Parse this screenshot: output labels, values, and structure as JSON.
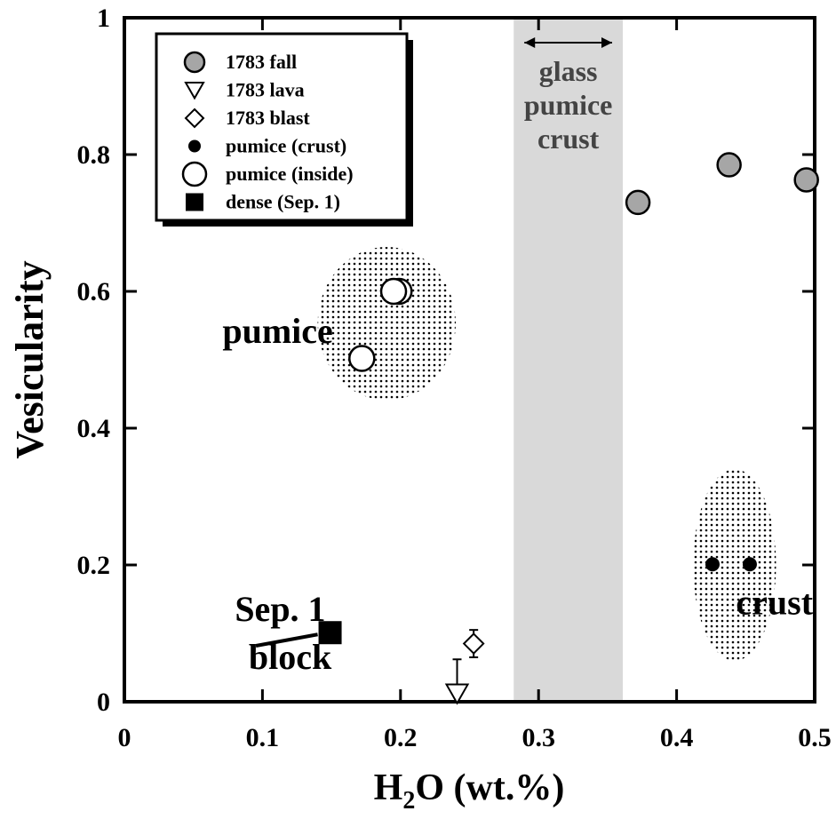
{
  "chart_data": {
    "type": "scatter",
    "xlabel_main": "H",
    "xlabel_sub": "2",
    "xlabel_rest": "O (wt.%)",
    "ylabel": "Vesicularity",
    "xlim": [
      0,
      0.5
    ],
    "ylim": [
      0,
      1
    ],
    "x_ticks": [
      0,
      0.1,
      0.2,
      0.3,
      0.4,
      0.5
    ],
    "x_tick_labels": [
      "0",
      "0.1",
      "0.2",
      "0.3",
      "0.4",
      "0.5"
    ],
    "y_ticks": [
      0,
      0.2,
      0.4,
      0.6,
      0.8,
      1
    ],
    "y_tick_labels": [
      "0",
      "0.2",
      "0.4",
      "0.6",
      "0.8",
      "1"
    ],
    "grid": false,
    "legend_position": "top-left",
    "legend": [
      {
        "label": "1783 fall",
        "marker": "circle-gray"
      },
      {
        "label": "1783 lava",
        "marker": "triangle-down-open"
      },
      {
        "label": "1783 blast",
        "marker": "diamond-open"
      },
      {
        "label": "pumice (crust)",
        "marker": "circle-black-small"
      },
      {
        "label": "pumice (inside)",
        "marker": "circle-open"
      },
      {
        "label": "dense (Sep. 1)",
        "marker": "square-black"
      }
    ],
    "series": [
      {
        "name": "1783 fall",
        "marker": "circle-gray",
        "points": [
          {
            "x": 0.372,
            "y": 0.73
          },
          {
            "x": 0.438,
            "y": 0.785
          },
          {
            "x": 0.494,
            "y": 0.763
          }
        ]
      },
      {
        "name": "1783 lava",
        "marker": "triangle-down-open",
        "points": [
          {
            "x": 0.241,
            "y": 0.012,
            "err_plus": 0.05
          }
        ]
      },
      {
        "name": "1783 blast",
        "marker": "diamond-open",
        "points": [
          {
            "x": 0.253,
            "y": 0.085,
            "err": 0.02
          }
        ]
      },
      {
        "name": "pumice (crust)",
        "marker": "circle-black-small",
        "points": [
          {
            "x": 0.426,
            "y": 0.201
          },
          {
            "x": 0.453,
            "y": 0.201
          }
        ]
      },
      {
        "name": "pumice (inside)",
        "marker": "circle-open",
        "points": [
          {
            "x": 0.199,
            "y": 0.6
          },
          {
            "x": 0.195,
            "y": 0.6
          },
          {
            "x": 0.172,
            "y": 0.502
          }
        ]
      },
      {
        "name": "dense (Sep. 1)",
        "marker": "square-black",
        "points": [
          {
            "x": 0.149,
            "y": 0.101
          }
        ]
      }
    ],
    "band": {
      "x_from": 0.282,
      "x_to": 0.361,
      "label_lines": [
        "glass",
        "pumice",
        "crust"
      ]
    },
    "regions": [
      {
        "name": "pumice",
        "cx": 0.19,
        "cy": 0.553,
        "rx": 0.05,
        "ry": 0.112
      },
      {
        "name": "crust",
        "cx": 0.442,
        "cy": 0.2,
        "rx": 0.03,
        "ry": 0.14
      }
    ],
    "annotations": [
      {
        "text": "pumice",
        "x": 0.071,
        "y": 0.525
      },
      {
        "text": "crust",
        "x": 0.443,
        "y": 0.128
      },
      {
        "text": "Sep. 1",
        "x": 0.08,
        "y": 0.118
      },
      {
        "text": "block",
        "x": 0.09,
        "y": 0.048
      }
    ]
  }
}
